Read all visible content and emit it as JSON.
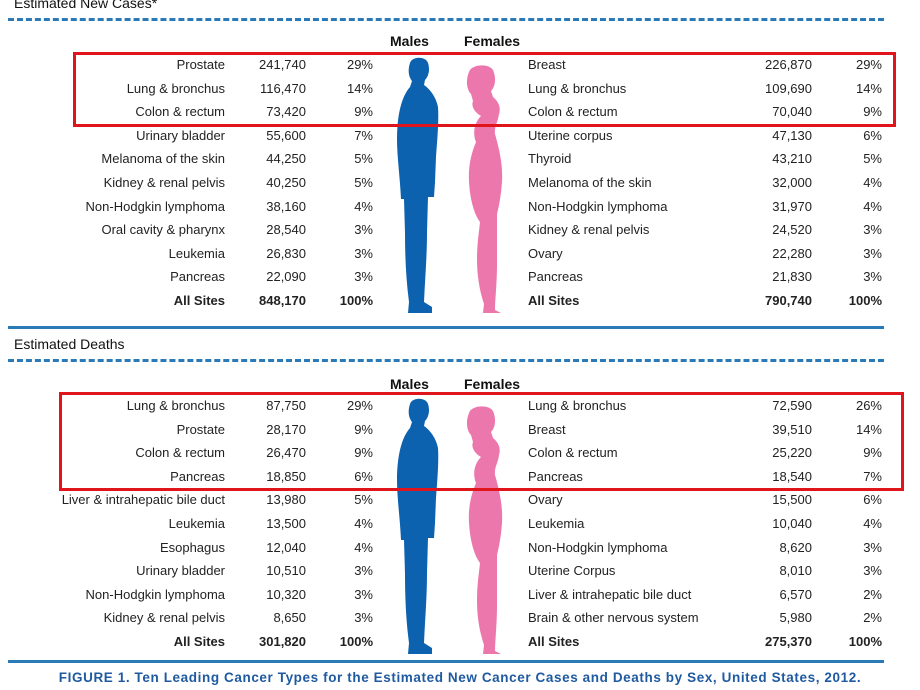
{
  "sections": [
    {
      "title": "Estimated New Cases*",
      "males_label": "Males",
      "females_label": "Females",
      "males": [
        {
          "site": "Prostate",
          "count": "241,740",
          "pct": "29%"
        },
        {
          "site": "Lung & bronchus",
          "count": "116,470",
          "pct": "14%"
        },
        {
          "site": "Colon & rectum",
          "count": "73,420",
          "pct": "9%"
        },
        {
          "site": "Urinary bladder",
          "count": "55,600",
          "pct": "7%"
        },
        {
          "site": "Melanoma of the skin",
          "count": "44,250",
          "pct": "5%"
        },
        {
          "site": "Kidney & renal pelvis",
          "count": "40,250",
          "pct": "5%"
        },
        {
          "site": "Non-Hodgkin lymphoma",
          "count": "38,160",
          "pct": "4%"
        },
        {
          "site": "Oral cavity & pharynx",
          "count": "28,540",
          "pct": "3%"
        },
        {
          "site": "Leukemia",
          "count": "26,830",
          "pct": "3%"
        },
        {
          "site": "Pancreas",
          "count": "22,090",
          "pct": "3%"
        },
        {
          "site": "All Sites",
          "count": "848,170",
          "pct": "100%"
        }
      ],
      "females": [
        {
          "site": "Breast",
          "count": "226,870",
          "pct": "29%"
        },
        {
          "site": "Lung & bronchus",
          "count": "109,690",
          "pct": "14%"
        },
        {
          "site": "Colon & rectum",
          "count": "70,040",
          "pct": "9%"
        },
        {
          "site": "Uterine corpus",
          "count": "47,130",
          "pct": "6%"
        },
        {
          "site": "Thyroid",
          "count": "43,210",
          "pct": "5%"
        },
        {
          "site": "Melanoma of the skin",
          "count": "32,000",
          "pct": "4%"
        },
        {
          "site": "Non-Hodgkin lymphoma",
          "count": "31,970",
          "pct": "4%"
        },
        {
          "site": "Kidney & renal pelvis",
          "count": "24,520",
          "pct": "3%"
        },
        {
          "site": "Ovary",
          "count": "22,280",
          "pct": "3%"
        },
        {
          "site": "Pancreas",
          "count": "21,830",
          "pct": "3%"
        },
        {
          "site": "All Sites",
          "count": "790,740",
          "pct": "100%"
        }
      ]
    },
    {
      "title": "Estimated Deaths",
      "males_label": "Males",
      "females_label": "Females",
      "males": [
        {
          "site": "Lung & bronchus",
          "count": "87,750",
          "pct": "29%"
        },
        {
          "site": "Prostate",
          "count": "28,170",
          "pct": "9%"
        },
        {
          "site": "Colon & rectum",
          "count": "26,470",
          "pct": "9%"
        },
        {
          "site": "Pancreas",
          "count": "18,850",
          "pct": "6%"
        },
        {
          "site": "Liver & intrahepatic bile duct",
          "count": "13,980",
          "pct": "5%"
        },
        {
          "site": "Leukemia",
          "count": "13,500",
          "pct": "4%"
        },
        {
          "site": "Esophagus",
          "count": "12,040",
          "pct": "4%"
        },
        {
          "site": "Urinary bladder",
          "count": "10,510",
          "pct": "3%"
        },
        {
          "site": "Non-Hodgkin lymphoma",
          "count": "10,320",
          "pct": "3%"
        },
        {
          "site": "Kidney & renal pelvis",
          "count": "8,650",
          "pct": "3%"
        },
        {
          "site": "All Sites",
          "count": "301,820",
          "pct": "100%"
        }
      ],
      "females": [
        {
          "site": "Lung & bronchus",
          "count": "72,590",
          "pct": "26%"
        },
        {
          "site": "Breast",
          "count": "39,510",
          "pct": "14%"
        },
        {
          "site": "Colon & rectum",
          "count": "25,220",
          "pct": "9%"
        },
        {
          "site": "Pancreas",
          "count": "18,540",
          "pct": "7%"
        },
        {
          "site": "Ovary",
          "count": "15,500",
          "pct": "6%"
        },
        {
          "site": "Leukemia",
          "count": "10,040",
          "pct": "4%"
        },
        {
          "site": "Non-Hodgkin lymphoma",
          "count": "8,620",
          "pct": "3%"
        },
        {
          "site": "Uterine Corpus",
          "count": "8,010",
          "pct": "3%"
        },
        {
          "site": "Liver & intrahepatic bile duct",
          "count": "6,570",
          "pct": "2%"
        },
        {
          "site": "Brain & other nervous system",
          "count": "5,980",
          "pct": "2%"
        },
        {
          "site": "All Sites",
          "count": "275,370",
          "pct": "100%"
        }
      ]
    }
  ],
  "caption": "FIGURE 1. Ten Leading Cancer Types for the Estimated New Cancer Cases and Deaths by Sex, United States, 2012.",
  "colors": {
    "male": "#0d62b0",
    "female": "#ec77ad",
    "rule": "#2a7ab8",
    "highlight": "#e0141b",
    "caption": "#1f5aa0"
  },
  "icons": [
    "male-silhouette-icon",
    "female-silhouette-icon"
  ]
}
